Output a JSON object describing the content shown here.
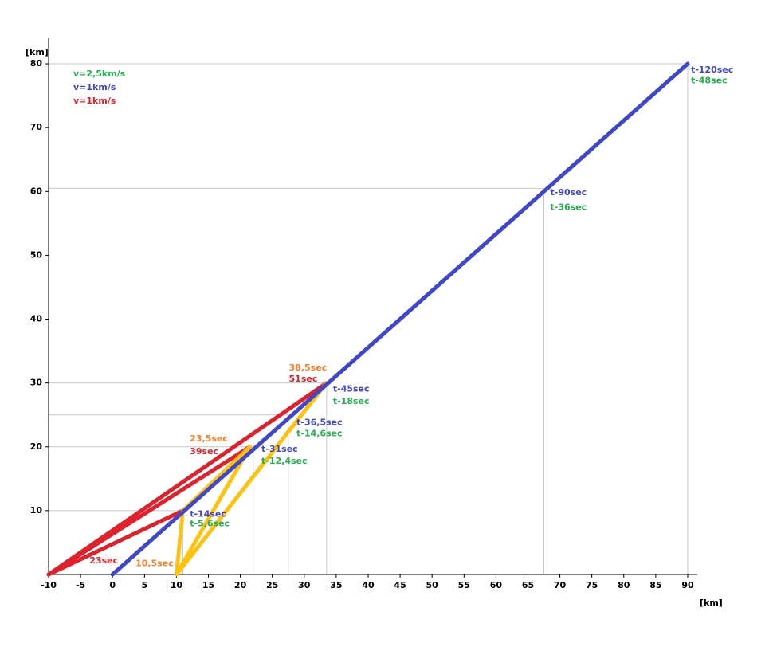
{
  "chart_data": {
    "type": "line",
    "xlabel": "[km]",
    "ylabel": "[km]",
    "xlim": [
      -10,
      91.5
    ],
    "ylim": [
      0,
      84
    ],
    "xticks": [
      -10,
      -5,
      0,
      5,
      10,
      15,
      20,
      25,
      30,
      35,
      40,
      45,
      50,
      55,
      60,
      65,
      70,
      75,
      80,
      85,
      90
    ],
    "yticks": [
      10,
      20,
      30,
      40,
      50,
      60,
      70,
      80
    ],
    "legend": [
      {
        "text": "v=2,5km/s",
        "color": "#22b14c"
      },
      {
        "text": "v=1km/s",
        "color": "#3f48cc"
      },
      {
        "text": "v=1km/s",
        "color": "#e0202a"
      }
    ],
    "guides": {
      "x": [
        11,
        22,
        27.5,
        33.5,
        67.5,
        90
      ],
      "y": [
        10,
        20,
        25,
        30,
        60.5,
        80
      ]
    },
    "series": [
      {
        "color": "#e0202a",
        "x": [
          -10,
          11,
          null,
          -10,
          21.5,
          null,
          -10,
          33.5
        ],
        "y": [
          0,
          10,
          null,
          0,
          20,
          null,
          0,
          30
        ]
      },
      {
        "color": "#ffc20e",
        "x": [
          10,
          11,
          21.5,
          10,
          33.5
        ],
        "y": [
          0,
          10,
          20,
          0,
          30
        ]
      },
      {
        "color": "#3f48cc",
        "x": [
          0,
          90
        ],
        "y": [
          0,
          80
        ]
      }
    ],
    "annotations": [
      {
        "text": "t-120sec",
        "color": "#3f48cc",
        "x": 90.5,
        "y": 79
      },
      {
        "text": "t-48sec",
        "color": "#22b14c",
        "x": 90.5,
        "y": 77.3
      },
      {
        "text": "t-90sec",
        "color": "#3f48cc",
        "x": 68.5,
        "y": 59.8
      },
      {
        "text": "t-36sec",
        "color": "#22b14c",
        "x": 68.5,
        "y": 57.5
      },
      {
        "text": "38,5sec",
        "color": "#ff7f27",
        "x": 27.6,
        "y": 32.3
      },
      {
        "text": "51sec",
        "color": "#e0202a",
        "x": 27.6,
        "y": 30.6
      },
      {
        "text": "t-45sec",
        "color": "#3f48cc",
        "x": 34.5,
        "y": 29
      },
      {
        "text": "t-18sec",
        "color": "#22b14c",
        "x": 34.5,
        "y": 27.1
      },
      {
        "text": "t-36,5sec",
        "color": "#3f48cc",
        "x": 28.8,
        "y": 23.8
      },
      {
        "text": "t-14,6sec",
        "color": "#22b14c",
        "x": 28.8,
        "y": 22
      },
      {
        "text": "23,5sec",
        "color": "#ff7f27",
        "x": 12.1,
        "y": 21.2
      },
      {
        "text": "39sec",
        "color": "#e0202a",
        "x": 12.1,
        "y": 19.2
      },
      {
        "text": "t-31sec",
        "color": "#3f48cc",
        "x": 23.3,
        "y": 19.6
      },
      {
        "text": "t-12,4sec",
        "color": "#22b14c",
        "x": 23.3,
        "y": 17.7
      },
      {
        "text": "t-14sec",
        "color": "#3f48cc",
        "x": 12.1,
        "y": 9.4
      },
      {
        "text": "t-5,6sec",
        "color": "#22b14c",
        "x": 12.1,
        "y": 7.9
      },
      {
        "text": "23sec",
        "color": "#e0202a",
        "x": -3.6,
        "y": 2.1
      },
      {
        "text": "10,5sec",
        "color": "#ff7f27",
        "x": 3.6,
        "y": 1.7
      }
    ]
  }
}
